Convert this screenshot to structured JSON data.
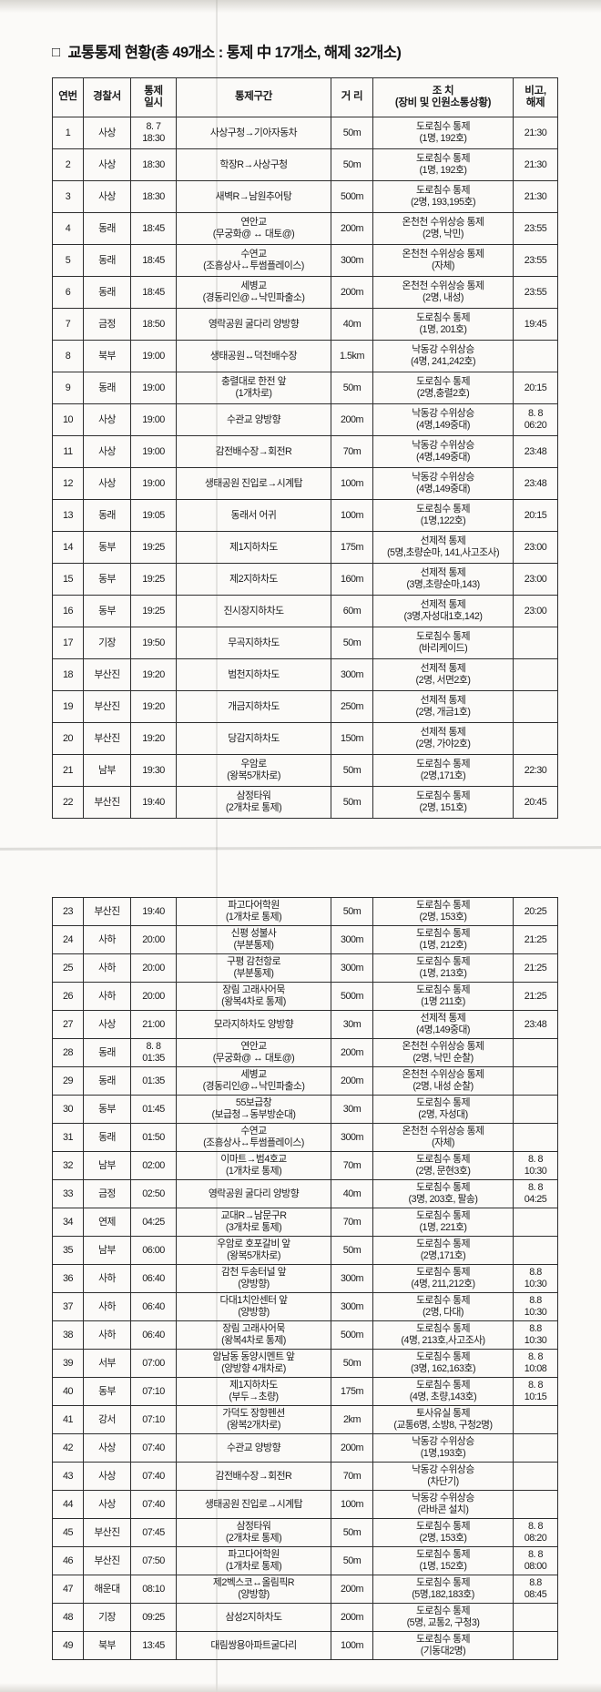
{
  "title": {
    "marker": "□",
    "text": "교통통제 현황(총 49개소 : 통제 中 17개소, 해제 32개소)"
  },
  "colors": {
    "paper": "#fbfaf8",
    "background": "#e8e6e2",
    "text": "#1b1b1b",
    "border": "#2e2e2e"
  },
  "table": {
    "columns": [
      {
        "key": "no",
        "label": "연번"
      },
      {
        "key": "station",
        "label": "경찰서"
      },
      {
        "key": "time",
        "label": "통제\n일시"
      },
      {
        "key": "section",
        "label": "통제구간"
      },
      {
        "key": "distance",
        "label": "거 리"
      },
      {
        "key": "action",
        "label": "조 치\n(장비 및 인원소통상황)"
      },
      {
        "key": "note",
        "label": "비고,\n해제"
      }
    ],
    "rows_page1": [
      {
        "no": "1",
        "station": "사상",
        "time": "8. 7\n18:30",
        "section": "사상구청→기아자동차",
        "distance": "50m",
        "action": "도로침수 통제\n(1명, 192호)",
        "note": "21:30"
      },
      {
        "no": "2",
        "station": "사상",
        "time": "18:30",
        "section": "학장R→사상구청",
        "distance": "50m",
        "action": "도로침수 통제\n(1명, 192호)",
        "note": "21:30"
      },
      {
        "no": "3",
        "station": "사상",
        "time": "18:30",
        "section": "새벽R→남원추어탕",
        "distance": "500m",
        "action": "도로침수 통제\n(2명, 193,195호)",
        "note": "21:30"
      },
      {
        "no": "4",
        "station": "동래",
        "time": "18:45",
        "section": "연안교\n(무궁화@ ↔ 대토@)",
        "distance": "200m",
        "action": "온천천 수위상승 통제\n(2명, 낙민)",
        "note": "23:55"
      },
      {
        "no": "5",
        "station": "동래",
        "time": "18:45",
        "section": "수연교\n(조흥상사↔투썸플레이스)",
        "distance": "300m",
        "action": "온천천 수위상승 통제\n(자체)",
        "note": "23:55"
      },
      {
        "no": "6",
        "station": "동래",
        "time": "18:45",
        "section": "세병교\n(경동리인@↔낙민파출소)",
        "distance": "200m",
        "action": "온천천 수위상승 통제\n(2명, 내성)",
        "note": "23:55"
      },
      {
        "no": "7",
        "station": "금정",
        "time": "18:50",
        "section": "영락공원 굴다리 양방향",
        "distance": "40m",
        "action": "도로침수 통제\n(1명, 201호)",
        "note": "19:45"
      },
      {
        "no": "8",
        "station": "북부",
        "time": "19:00",
        "section": "생태공원↔덕천배수장",
        "distance": "1.5km",
        "action": "낙동강 수위상승\n(4명, 241,242호)",
        "note": ""
      },
      {
        "no": "9",
        "station": "동래",
        "time": "19:00",
        "section": "충렬대로 한전 앞\n(1개차로)",
        "distance": "50m",
        "action": "도로침수 통제\n(2명,충렬2호)",
        "note": "20:15"
      },
      {
        "no": "10",
        "station": "사상",
        "time": "19:00",
        "section": "수관교 양방향",
        "distance": "200m",
        "action": "낙동강 수위상승\n(4명,149중대)",
        "note": "8. 8\n06:20"
      },
      {
        "no": "11",
        "station": "사상",
        "time": "19:00",
        "section": "감전배수장→회전R",
        "distance": "70m",
        "action": "낙동강 수위상승\n(4명,149중대)",
        "note": "23:48"
      },
      {
        "no": "12",
        "station": "사상",
        "time": "19:00",
        "section": "생태공원 진입로→시계탑",
        "distance": "100m",
        "action": "낙동강 수위상승\n(4명,149중대)",
        "note": "23:48"
      },
      {
        "no": "13",
        "station": "동래",
        "time": "19:05",
        "section": "동래서 어귀",
        "distance": "100m",
        "action": "도로침수 통제\n(1명,122호)",
        "note": "20:15"
      },
      {
        "no": "14",
        "station": "동부",
        "time": "19:25",
        "section": "제1지하차도",
        "distance": "175m",
        "action": "선제적 통제\n(5명,초량순마, 141,사고조사)",
        "note": "23:00"
      },
      {
        "no": "15",
        "station": "동부",
        "time": "19:25",
        "section": "제2지하차도",
        "distance": "160m",
        "action": "선제적 통제\n(3명,초량순마,143)",
        "note": "23:00"
      },
      {
        "no": "16",
        "station": "동부",
        "time": "19:25",
        "section": "진시장지하차도",
        "distance": "60m",
        "action": "선제적 통제\n(3명,자성대1호,142)",
        "note": "23:00"
      },
      {
        "no": "17",
        "station": "기장",
        "time": "19:50",
        "section": "무곡지하차도",
        "distance": "50m",
        "action": "도로침수 통제\n(바리케이드)",
        "note": ""
      },
      {
        "no": "18",
        "station": "부산진",
        "time": "19:20",
        "section": "범천지하차도",
        "distance": "300m",
        "action": "선제적 통제\n(2명, 서면2호)",
        "note": ""
      },
      {
        "no": "19",
        "station": "부산진",
        "time": "19:20",
        "section": "개금지하차도",
        "distance": "250m",
        "action": "선제적 통제\n(2명, 개금1호)",
        "note": ""
      },
      {
        "no": "20",
        "station": "부산진",
        "time": "19:20",
        "section": "당감지하차도",
        "distance": "150m",
        "action": "선제적 통제\n(2명, 가야2호)",
        "note": ""
      },
      {
        "no": "21",
        "station": "남부",
        "time": "19:30",
        "section": "우암로\n(왕복5개차로)",
        "distance": "50m",
        "action": "도로침수 통제\n(2명,171호)",
        "note": "22:30"
      },
      {
        "no": "22",
        "station": "부산진",
        "time": "19:40",
        "section": "삼정타워\n(2개차로 통제)",
        "distance": "50m",
        "action": "도로침수 통제\n(2명, 151호)",
        "note": "20:45"
      }
    ],
    "rows_page2": [
      {
        "no": "23",
        "station": "부산진",
        "time": "19:40",
        "section": "파고다어학원\n(1개차로 통제)",
        "distance": "50m",
        "action": "도로침수 통제\n(2명, 153호)",
        "note": "20:25"
      },
      {
        "no": "24",
        "station": "사하",
        "time": "20:00",
        "section": "신평 성불사\n(부분통제)",
        "distance": "300m",
        "action": "도로침수 통제\n(1명, 212호)",
        "note": "21:25"
      },
      {
        "no": "25",
        "station": "사하",
        "time": "20:00",
        "section": "구평 감천항로\n(부분통제)",
        "distance": "300m",
        "action": "도로침수 통제\n(1명, 213호)",
        "note": "21:25"
      },
      {
        "no": "26",
        "station": "사하",
        "time": "20:00",
        "section": "장림 고래사어묵\n(왕복4차로 통제)",
        "distance": "500m",
        "action": "도로침수 통제\n(1명 211호)",
        "note": "21:25"
      },
      {
        "no": "27",
        "station": "사상",
        "time": "21:00",
        "section": "모라지하차도 양방향",
        "distance": "30m",
        "action": "선제적 통제\n(4명,149중대)",
        "note": "23:48"
      },
      {
        "no": "28",
        "station": "동래",
        "time": "8. 8\n01:35",
        "section": "연안교\n(무궁화@ ↔ 대토@)",
        "distance": "200m",
        "action": "온천천 수위상승 통제\n(2명, 낙민 순찰)",
        "note": ""
      },
      {
        "no": "29",
        "station": "동래",
        "time": "01:35",
        "section": "세병교\n(경동리인@↔낙민파출소)",
        "distance": "200m",
        "action": "온천천 수위상승 통제\n(2명, 내성 순찰)",
        "note": ""
      },
      {
        "no": "30",
        "station": "동부",
        "time": "01:45",
        "section": "55보급창\n(보급청→동부방순대)",
        "distance": "30m",
        "action": "도로침수 통제\n(2명, 자성대)",
        "note": ""
      },
      {
        "no": "31",
        "station": "동래",
        "time": "01:50",
        "section": "수연교\n(조흥상사↔투썸플레이스)",
        "distance": "300m",
        "action": "온천천 수위상승 통제\n(자체)",
        "note": ""
      },
      {
        "no": "32",
        "station": "남부",
        "time": "02:00",
        "section": "이마트→범4호교\n(1개차로 통제)",
        "distance": "70m",
        "action": "도로침수 통제\n(2명, 문현3호)",
        "note": "8. 8\n10:30"
      },
      {
        "no": "33",
        "station": "금정",
        "time": "02:50",
        "section": "영락공원 굴다리 양방향",
        "distance": "40m",
        "action": "도로침수 통제\n(3명, 203호, 팔송)",
        "note": "8. 8\n04:25"
      },
      {
        "no": "34",
        "station": "연제",
        "time": "04:25",
        "section": "교대R→남문구R\n(3개차로 통제)",
        "distance": "70m",
        "action": "도로침수 통제\n(1명, 221호)",
        "note": ""
      },
      {
        "no": "35",
        "station": "남부",
        "time": "06:00",
        "section": "우암로 호포갈비 앞\n(왕복5개차로)",
        "distance": "50m",
        "action": "도로침수 통제\n(2명,171호)",
        "note": ""
      },
      {
        "no": "36",
        "station": "사하",
        "time": "06:40",
        "section": "감천 두송터널 앞\n(양방향)",
        "distance": "300m",
        "action": "도로침수 통제\n(4명, 211,212호)",
        "note": "8.8\n10:30"
      },
      {
        "no": "37",
        "station": "사하",
        "time": "06:40",
        "section": "다대1치안센터 앞\n(양방향)",
        "distance": "300m",
        "action": "도로침수 통제\n(2명, 다대)",
        "note": "8.8\n10:30"
      },
      {
        "no": "38",
        "station": "사하",
        "time": "06:40",
        "section": "장림 고래사어묵\n(왕복4차로 통제)",
        "distance": "500m",
        "action": "도로침수 통제\n(4명, 213호,사고조사)",
        "note": "8.8\n10:30"
      },
      {
        "no": "39",
        "station": "서부",
        "time": "07:00",
        "section": "암남동 동양시멘트 앞\n(양방향 4개차로)",
        "distance": "50m",
        "action": "도로침수 통제\n(3명, 162,163호)",
        "note": "8. 8\n10:08"
      },
      {
        "no": "40",
        "station": "동부",
        "time": "07:10",
        "section": "제1지하차도\n(부두→초량)",
        "distance": "175m",
        "action": "도로침수 통제\n(4명, 초량,143호)",
        "note": "8. 8\n10:15"
      },
      {
        "no": "41",
        "station": "강서",
        "time": "07:10",
        "section": "가덕도 장항펜션\n(왕복2개차로)",
        "distance": "2km",
        "action": "토사유실 통제\n(교통6명, 소방8, 구청2명)",
        "note": ""
      },
      {
        "no": "42",
        "station": "사상",
        "time": "07:40",
        "section": "수관교 양방향",
        "distance": "200m",
        "action": "낙동강 수위상승\n(1명,193호)",
        "note": ""
      },
      {
        "no": "43",
        "station": "사상",
        "time": "07:40",
        "section": "감전배수장→회전R",
        "distance": "70m",
        "action": "낙동강 수위상승\n(차단기)",
        "note": ""
      },
      {
        "no": "44",
        "station": "사상",
        "time": "07:40",
        "section": "생태공원 진입로→시계탑",
        "distance": "100m",
        "action": "낙동강 수위상승\n(라바콘 설치)",
        "note": ""
      },
      {
        "no": "45",
        "station": "부산진",
        "time": "07:45",
        "section": "삼정타워\n(2개차로 통제)",
        "distance": "50m",
        "action": "도로침수 통제\n(2명, 153호)",
        "note": "8. 8\n08:20"
      },
      {
        "no": "46",
        "station": "부산진",
        "time": "07:50",
        "section": "파고다어학원\n(1개차로 통제)",
        "distance": "50m",
        "action": "도로침수 통제\n(1명, 152호)",
        "note": "8. 8\n08:00"
      },
      {
        "no": "47",
        "station": "해운대",
        "time": "08:10",
        "section": "제2벡스코↔올림픽R\n(양방향)",
        "distance": "200m",
        "action": "도로침수 통제\n(5명,182,183호)",
        "note": "8.8\n08:45"
      },
      {
        "no": "48",
        "station": "기장",
        "time": "09:25",
        "section": "삼성2지하차도",
        "distance": "200m",
        "action": "도로침수 통제\n(5명, 교통2, 구청3)",
        "note": ""
      },
      {
        "no": "49",
        "station": "북부",
        "time": "13:45",
        "section": "대림쌍용아파트굴다리",
        "distance": "100m",
        "action": "도로침수 통제\n(기동대2명)",
        "note": ""
      }
    ]
  }
}
